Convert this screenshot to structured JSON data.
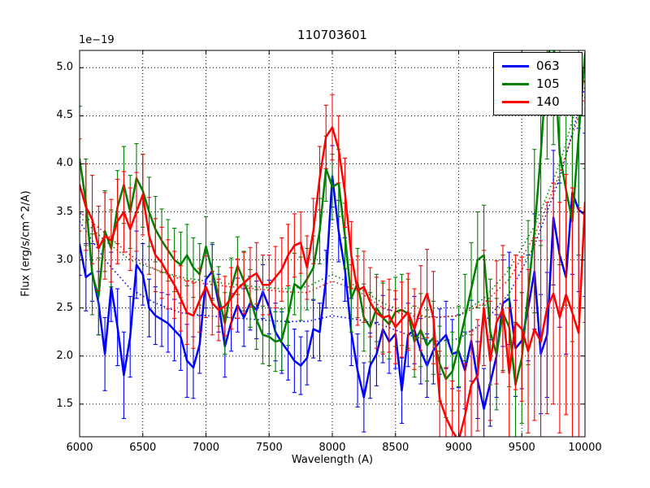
{
  "title": "110703601",
  "offset_label": "1e−19",
  "xlabel": "Wavelength (A)",
  "ylabel": "Flux (erg/s/cm^2/A)",
  "legend": {
    "position": "upper right",
    "items": [
      {
        "label": "063",
        "color": "#0000ff"
      },
      {
        "label": "105",
        "color": "#008000"
      },
      {
        "label": "140",
        "color": "#ff0000"
      }
    ]
  },
  "chart_data": {
    "type": "line",
    "title": "110703601",
    "xlabel": "Wavelength (A)",
    "ylabel": "Flux (erg/s/cm^2/A)",
    "y_offset_scale": "1e-19",
    "grid": true,
    "grid_style": "dotted",
    "legend_position": "upper right",
    "xlim": [
      6000,
      10000
    ],
    "ylim": [
      1.16,
      5.18
    ],
    "xticks": [
      {
        "v": 6000,
        "label": "6000"
      },
      {
        "v": 6500,
        "label": "6500"
      },
      {
        "v": 7000,
        "label": "7000"
      },
      {
        "v": 7500,
        "label": "7500"
      },
      {
        "v": 8000,
        "label": "8000"
      },
      {
        "v": 8500,
        "label": "8500"
      },
      {
        "v": 9000,
        "label": "9000"
      },
      {
        "v": 9500,
        "label": "9500"
      },
      {
        "v": 10000,
        "label": "10000"
      }
    ],
    "yticks": [
      {
        "v": 1.5,
        "label": "1.5"
      },
      {
        "v": 2.0,
        "label": "2.0"
      },
      {
        "v": 2.5,
        "label": "2.5"
      },
      {
        "v": 3.0,
        "label": "3.0"
      },
      {
        "v": 3.5,
        "label": "3.5"
      },
      {
        "v": 4.0,
        "label": "4.0"
      },
      {
        "v": 4.5,
        "label": "4.5"
      },
      {
        "v": 5.0,
        "label": "5.0"
      }
    ],
    "x_start": 6000,
    "x_step": 50,
    "series": [
      {
        "name": "063",
        "color": "#0000ff",
        "style": "solid_with_errorbars",
        "values": [
          3.16,
          2.82,
          2.87,
          2.55,
          2.02,
          2.72,
          2.3,
          1.8,
          2.2,
          2.95,
          2.85,
          2.5,
          2.42,
          2.38,
          2.34,
          2.27,
          2.2,
          1.95,
          1.88,
          2.12,
          2.8,
          2.88,
          2.55,
          2.1,
          2.35,
          2.53,
          2.4,
          2.55,
          2.48,
          2.67,
          2.51,
          2.25,
          2.14,
          2.05,
          1.95,
          1.9,
          1.98,
          2.28,
          2.25,
          2.8,
          3.87,
          3.3,
          2.9,
          2.25,
          1.85,
          1.57,
          1.9,
          2.02,
          2.28,
          2.15,
          2.23,
          1.64,
          2.22,
          2.27,
          2.05,
          1.9,
          2.06,
          2.15,
          2.22,
          2.02,
          2.05,
          1.85,
          2.16,
          1.75,
          1.45,
          1.72,
          2.0,
          2.55,
          2.6,
          2.08,
          2.16,
          2.5,
          2.88,
          2.02,
          2.22,
          3.44,
          3.05,
          2.82,
          3.7,
          3.52,
          3.47
        ],
        "errors": [
          0.32,
          0.35,
          0.3,
          0.33,
          0.38,
          0.36,
          0.4,
          0.45,
          0.42,
          0.35,
          0.32,
          0.3,
          0.3,
          0.28,
          0.3,
          0.32,
          0.35,
          0.38,
          0.32,
          0.3,
          0.3,
          0.28,
          0.3,
          0.32,
          0.3,
          0.28,
          0.3,
          0.28,
          0.3,
          0.28,
          0.28,
          0.3,
          0.32,
          0.3,
          0.33,
          0.3,
          0.28,
          0.3,
          0.3,
          0.3,
          0.32,
          0.32,
          0.33,
          0.35,
          0.38,
          0.36,
          0.34,
          0.33,
          0.35,
          0.33,
          0.36,
          0.34,
          0.33,
          0.35,
          0.34,
          0.33,
          0.35,
          0.34,
          0.35,
          0.36,
          0.38,
          0.4,
          0.42,
          0.4,
          0.42,
          0.45,
          0.43,
          0.45,
          0.48,
          0.5,
          0.5,
          0.55,
          0.6,
          0.62,
          0.65,
          0.7,
          0.75,
          0.8,
          0.85,
          0.85,
          0.85
        ]
      },
      {
        "name": "105",
        "color": "#008000",
        "style": "solid_with_errorbars",
        "values": [
          4.05,
          3.6,
          2.85,
          2.62,
          3.3,
          3.12,
          3.55,
          3.78,
          3.5,
          3.85,
          3.72,
          3.5,
          3.32,
          3.2,
          3.1,
          3.0,
          2.95,
          3.05,
          2.92,
          2.85,
          3.14,
          2.88,
          2.62,
          2.34,
          2.71,
          2.94,
          2.78,
          2.6,
          2.38,
          2.22,
          2.2,
          2.15,
          2.17,
          2.42,
          2.75,
          2.7,
          2.8,
          2.92,
          3.3,
          3.95,
          3.76,
          3.8,
          3.25,
          2.6,
          2.76,
          2.4,
          2.3,
          2.5,
          2.4,
          2.33,
          2.46,
          2.48,
          2.44,
          2.15,
          2.27,
          2.11,
          2.19,
          1.92,
          1.76,
          1.84,
          2.1,
          2.4,
          2.7,
          3.0,
          3.05,
          2.25,
          2.02,
          2.45,
          2.3,
          1.7,
          1.98,
          2.66,
          3.3,
          4.1,
          5.1,
          5.3,
          4.1,
          3.73,
          3.4,
          4.3,
          5.15
        ],
        "errors": [
          0.55,
          0.45,
          0.42,
          0.4,
          0.42,
          0.4,
          0.38,
          0.4,
          0.38,
          0.36,
          0.38,
          0.36,
          0.34,
          0.33,
          0.32,
          0.33,
          0.34,
          0.32,
          0.31,
          0.32,
          0.31,
          0.3,
          0.31,
          0.32,
          0.31,
          0.3,
          0.31,
          0.3,
          0.31,
          0.3,
          0.3,
          0.31,
          0.32,
          0.31,
          0.32,
          0.33,
          0.32,
          0.33,
          0.34,
          0.34,
          0.34,
          0.35,
          0.34,
          0.35,
          0.36,
          0.35,
          0.36,
          0.35,
          0.36,
          0.36,
          0.36,
          0.37,
          0.36,
          0.37,
          0.38,
          0.37,
          0.38,
          0.39,
          0.4,
          0.41,
          0.42,
          0.45,
          0.48,
          0.5,
          0.52,
          0.55,
          0.58,
          0.6,
          0.62,
          0.65,
          0.68,
          0.75,
          0.85,
          0.95,
          1.05,
          1.1,
          1.15,
          1.2,
          1.25,
          1.25,
          1.2
        ]
      },
      {
        "name": "140",
        "color": "#ff0000",
        "style": "solid_with_errorbars",
        "values": [
          3.78,
          3.55,
          3.42,
          3.12,
          3.25,
          3.2,
          3.4,
          3.5,
          3.32,
          3.5,
          3.68,
          3.25,
          3.05,
          2.97,
          2.85,
          2.74,
          2.6,
          2.45,
          2.42,
          2.58,
          2.72,
          2.55,
          2.48,
          2.52,
          2.6,
          2.7,
          2.76,
          2.82,
          2.86,
          2.74,
          2.74,
          2.82,
          2.9,
          3.05,
          3.15,
          3.18,
          2.92,
          3.3,
          3.85,
          4.28,
          4.38,
          4.15,
          3.7,
          3.05,
          2.68,
          2.72,
          2.56,
          2.45,
          2.4,
          2.42,
          2.3,
          2.38,
          2.46,
          2.28,
          2.5,
          2.65,
          2.4,
          1.55,
          1.36,
          1.22,
          1.12,
          1.38,
          1.7,
          1.8,
          2.5,
          1.95,
          2.35,
          2.49,
          1.82,
          2.35,
          2.28,
          2.05,
          2.28,
          2.15,
          2.5,
          2.65,
          2.4,
          2.64,
          2.45,
          2.24,
          3.6
        ],
        "errors": [
          0.48,
          0.45,
          0.46,
          0.44,
          0.45,
          0.43,
          0.44,
          0.42,
          0.43,
          0.41,
          0.42,
          0.4,
          0.38,
          0.37,
          0.36,
          0.35,
          0.34,
          0.33,
          0.34,
          0.33,
          0.32,
          0.33,
          0.32,
          0.31,
          0.32,
          0.31,
          0.32,
          0.31,
          0.32,
          0.31,
          0.31,
          0.32,
          0.33,
          0.32,
          0.33,
          0.32,
          0.33,
          0.34,
          0.33,
          0.33,
          0.34,
          0.35,
          0.36,
          0.35,
          0.36,
          0.37,
          0.36,
          0.37,
          0.38,
          0.38,
          0.38,
          0.39,
          0.4,
          0.42,
          0.44,
          0.46,
          0.48,
          0.5,
          0.52,
          0.52,
          0.52,
          0.54,
          0.56,
          0.58,
          0.6,
          0.62,
          0.64,
          0.66,
          0.68,
          0.7,
          0.75,
          0.85,
          0.95,
          1.05,
          1.1,
          1.15,
          1.2,
          1.25,
          1.3,
          1.3,
          1.25
        ]
      }
    ],
    "model_series": [
      {
        "name": "063-model",
        "color": "#0000ff",
        "style": "dotted",
        "x_start": 6000,
        "x_step": 200,
        "values": [
          3.4,
          3.0,
          2.7,
          2.55,
          2.45,
          2.42,
          2.4,
          2.38,
          2.36,
          2.36,
          2.42,
          2.38,
          2.32,
          2.22,
          2.15,
          2.18,
          2.35,
          2.65,
          3.15,
          3.85,
          4.8
        ]
      },
      {
        "name": "105-model",
        "color": "#008000",
        "style": "dotted",
        "x_start": 6000,
        "x_step": 200,
        "values": [
          3.45,
          3.2,
          3.0,
          2.9,
          2.82,
          2.78,
          2.75,
          2.72,
          2.7,
          2.72,
          2.85,
          2.72,
          2.55,
          2.45,
          2.4,
          2.42,
          2.6,
          2.9,
          3.35,
          4.0,
          4.9
        ]
      },
      {
        "name": "140-model",
        "color": "#ff0000",
        "style": "dotted",
        "x_start": 6000,
        "x_step": 200,
        "values": [
          3.5,
          3.28,
          3.05,
          2.9,
          2.8,
          2.75,
          2.72,
          2.7,
          2.67,
          2.66,
          2.78,
          2.68,
          2.5,
          2.42,
          2.4,
          2.42,
          2.55,
          2.8,
          3.25,
          3.9,
          4.7
        ]
      }
    ]
  }
}
